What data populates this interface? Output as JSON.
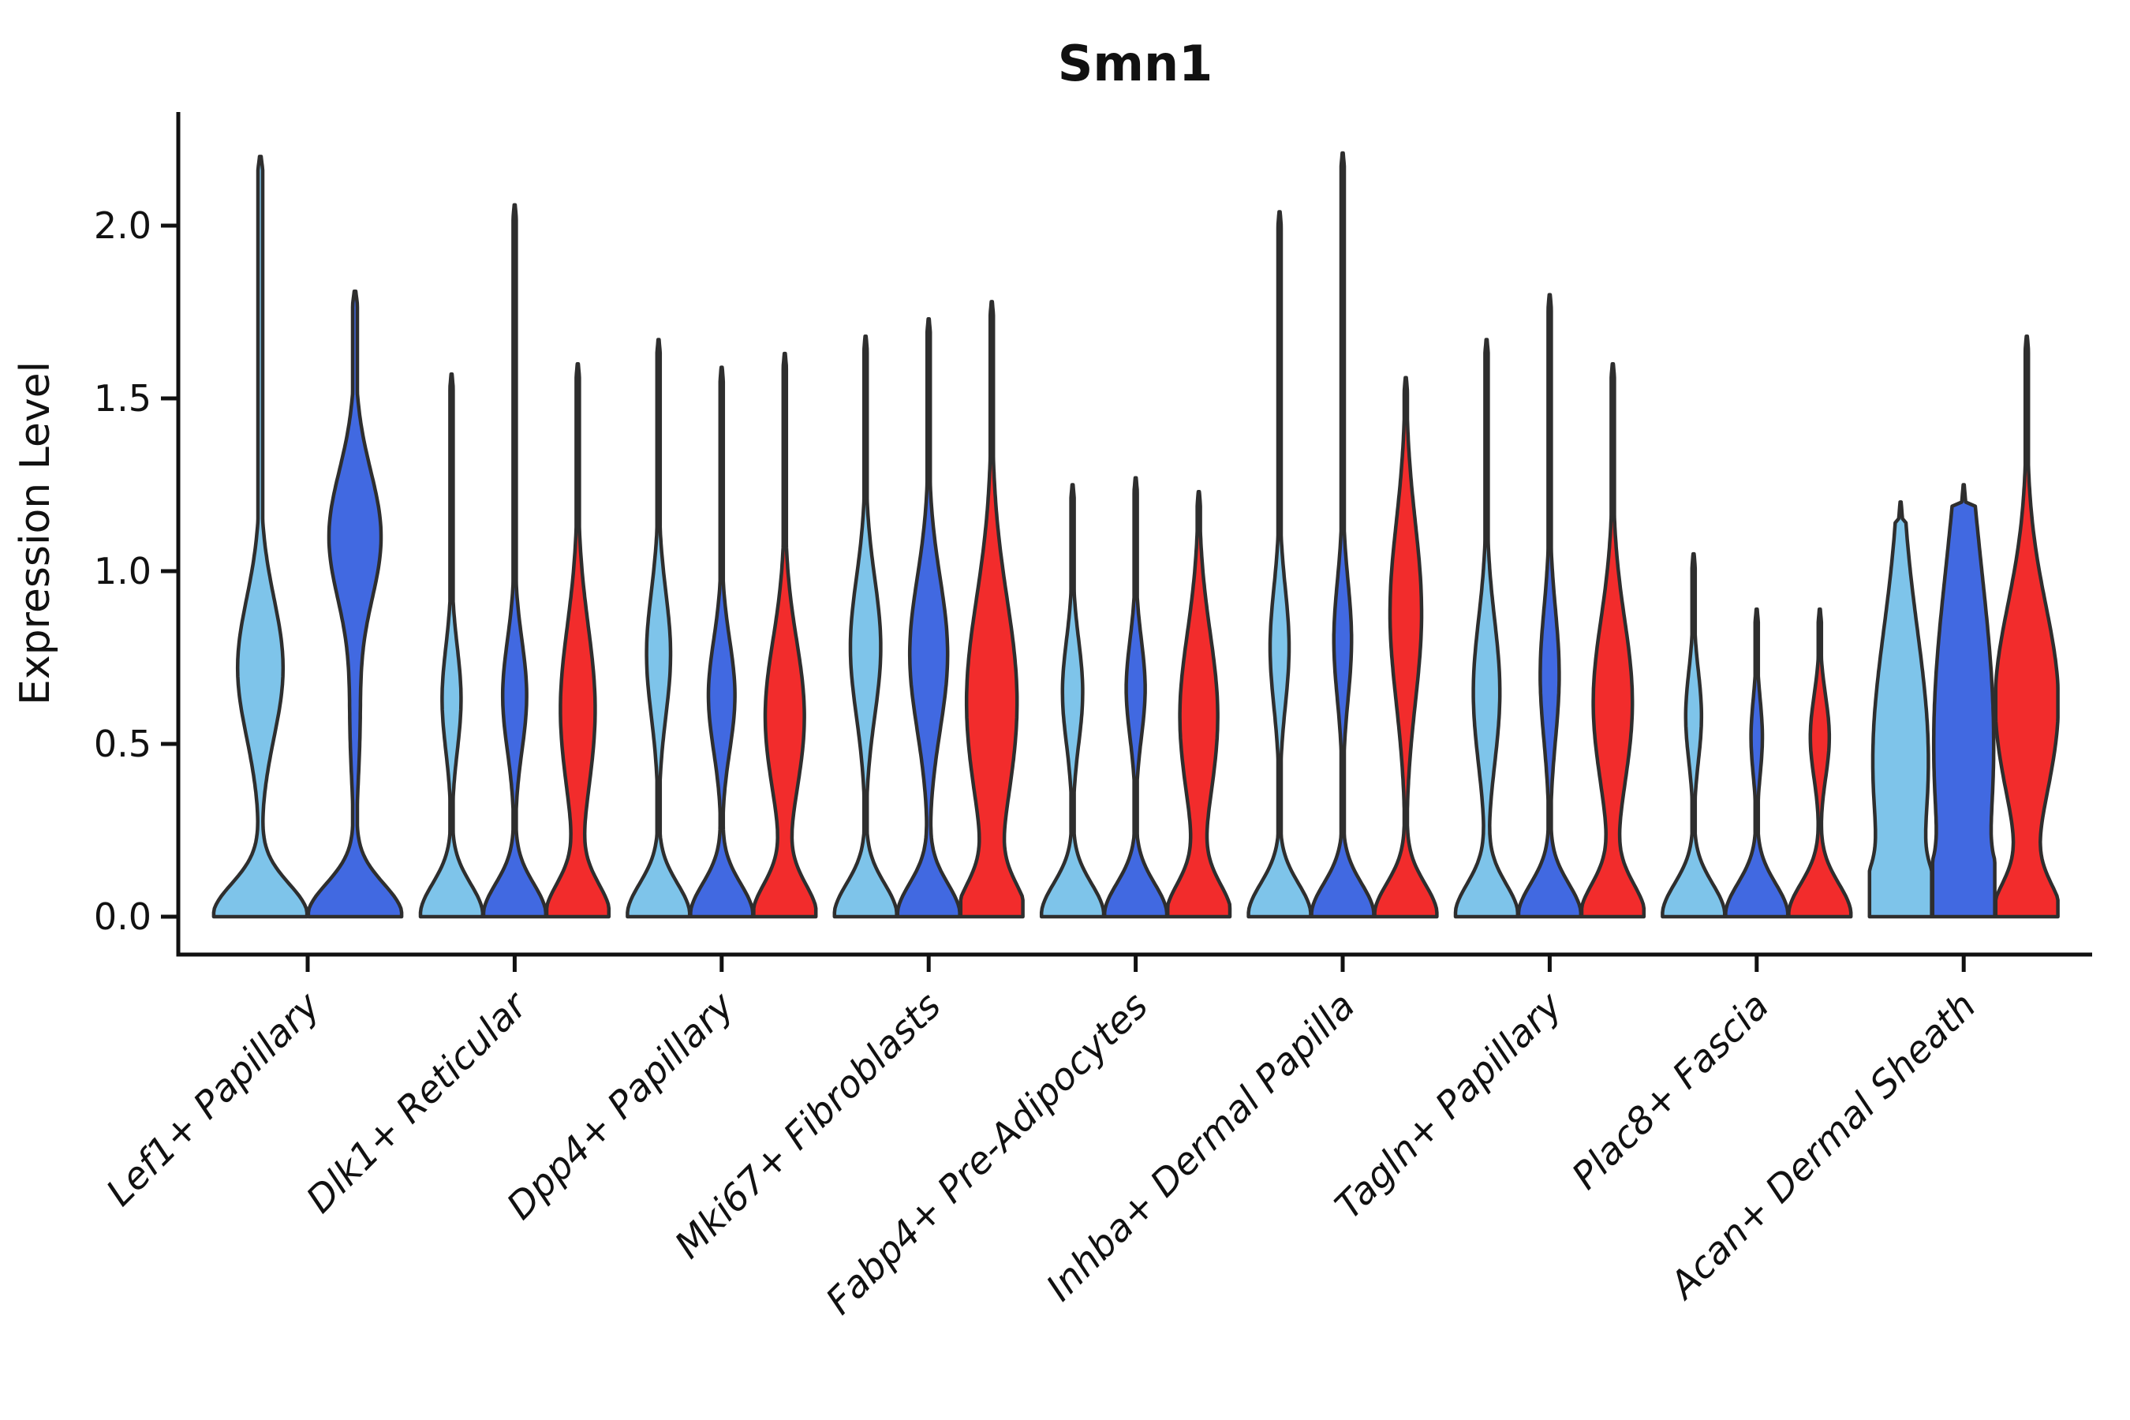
{
  "figure": {
    "title": "Smn1",
    "ylabel": "Expression Level"
  },
  "style": {
    "background": "#FFFFFF",
    "axis_color": "#111111",
    "text_color": "#111111",
    "violin_outline": "#2E2E2E",
    "light_blue": "#7EC4EA",
    "dark_blue": "#4169E1",
    "red": "#F22C2C"
  },
  "chart_data": {
    "type": "violin",
    "title": "Smn1",
    "xlabel": "",
    "ylabel": "Expression Level",
    "ylim": [
      -0.11,
      2.33
    ],
    "grid": false,
    "legend_position": "none",
    "ytick_labels": [
      "0.0",
      "0.5",
      "1.0",
      "1.5",
      "2.0"
    ],
    "ytick_values": [
      0.0,
      0.5,
      1.0,
      1.5,
      2.0
    ],
    "categories": [
      "Lef1+ Papillary",
      "Dlk1+ Reticular",
      "Dpp4+ Papillary",
      "Mki67+ Fibroblasts",
      "Fabp4+ Pre-Adipocytes",
      "Inhba+ Dermal Papilla",
      "Tagln+ Papillary",
      "Plac8+ Fascia",
      "Acan+ Dermal Sheath"
    ],
    "series": [
      {
        "name": "split-1-light-blue",
        "color": "#7EC4EA"
      },
      {
        "name": "split-2-dark-blue",
        "color": "#4169E1"
      },
      {
        "name": "split-3-red",
        "color": "#F22C2C"
      }
    ],
    "violins": [
      {
        "category": "Lef1+ Papillary",
        "items": [
          {
            "series": 0,
            "color": "#7EC4EA",
            "max": 2.2,
            "peak": {
              "c": 0.72,
              "a": 0.48,
              "s": 0.2
            }
          },
          {
            "series": 1,
            "color": "#4169E1",
            "max": 1.81,
            "peak": {
              "c": 1.1,
              "a": 0.55,
              "s": 0.19
            },
            "peak2": {
              "c": 0.55,
              "a": 0.1,
              "s": 0.18
            }
          }
        ]
      },
      {
        "category": "Dlk1+ Reticular",
        "items": [
          {
            "series": 0,
            "color": "#7EC4EA",
            "max": 1.57,
            "peak": {
              "c": 0.63,
              "a": 0.3,
              "s": 0.15
            }
          },
          {
            "series": 1,
            "color": "#4169E1",
            "max": 2.06,
            "peak": {
              "c": 0.64,
              "a": 0.38,
              "s": 0.16
            }
          },
          {
            "series": 2,
            "color": "#F22C2C",
            "max": 1.6,
            "peak": {
              "c": 0.6,
              "a": 0.55,
              "s": 0.24
            }
          }
        ]
      },
      {
        "category": "Dpp4+ Papillary",
        "items": [
          {
            "series": 0,
            "color": "#7EC4EA",
            "max": 1.67,
            "peak": {
              "c": 0.76,
              "a": 0.38,
              "s": 0.18
            }
          },
          {
            "series": 1,
            "color": "#4169E1",
            "max": 1.59,
            "peak": {
              "c": 0.64,
              "a": 0.42,
              "s": 0.16
            }
          },
          {
            "series": 2,
            "color": "#F22C2C",
            "max": 1.63,
            "peak": {
              "c": 0.58,
              "a": 0.62,
              "s": 0.22
            }
          }
        ]
      },
      {
        "category": "Mki67+ Fibroblasts",
        "items": [
          {
            "series": 0,
            "color": "#7EC4EA",
            "max": 1.68,
            "peak": {
              "c": 0.78,
              "a": 0.48,
              "s": 0.2
            }
          },
          {
            "series": 1,
            "color": "#4169E1",
            "max": 1.73,
            "peak": {
              "c": 0.76,
              "a": 0.6,
              "s": 0.22
            }
          },
          {
            "series": 2,
            "color": "#F22C2C",
            "max": 1.78,
            "peak": {
              "c": 0.62,
              "a": 0.8,
              "s": 0.3
            }
          }
        ]
      },
      {
        "category": "Fabp4+ Pre-Adipocytes",
        "items": [
          {
            "series": 0,
            "color": "#7EC4EA",
            "max": 1.25,
            "peak": {
              "c": 0.65,
              "a": 0.32,
              "s": 0.15
            }
          },
          {
            "series": 1,
            "color": "#4169E1",
            "max": 1.27,
            "peak": {
              "c": 0.66,
              "a": 0.3,
              "s": 0.14
            }
          },
          {
            "series": 2,
            "color": "#F22C2C",
            "max": 1.23,
            "peak": {
              "c": 0.58,
              "a": 0.6,
              "s": 0.24
            }
          }
        ]
      },
      {
        "category": "Inhba+ Dermal Papilla",
        "items": [
          {
            "series": 0,
            "color": "#7EC4EA",
            "max": 2.04,
            "peak": {
              "c": 0.78,
              "a": 0.3,
              "s": 0.17
            }
          },
          {
            "series": 1,
            "color": "#4169E1",
            "max": 2.21,
            "peak": {
              "c": 0.8,
              "a": 0.28,
              "s": 0.17
            }
          },
          {
            "series": 2,
            "color": "#F22C2C",
            "max": 1.56,
            "peak": {
              "c": 0.88,
              "a": 0.5,
              "s": 0.26
            }
          }
        ]
      },
      {
        "category": "Tagln+ Papillary",
        "items": [
          {
            "series": 0,
            "color": "#7EC4EA",
            "max": 1.67,
            "peak": {
              "c": 0.65,
              "a": 0.42,
              "s": 0.21
            }
          },
          {
            "series": 1,
            "color": "#4169E1",
            "max": 1.8,
            "peak": {
              "c": 0.7,
              "a": 0.3,
              "s": 0.19
            }
          },
          {
            "series": 2,
            "color": "#F22C2C",
            "max": 1.6,
            "peak": {
              "c": 0.62,
              "a": 0.62,
              "s": 0.24
            }
          }
        ]
      },
      {
        "category": "Plac8+ Fascia",
        "items": [
          {
            "series": 0,
            "color": "#7EC4EA",
            "max": 1.05,
            "peak": {
              "c": 0.58,
              "a": 0.25,
              "s": 0.13
            }
          },
          {
            "series": 1,
            "color": "#4169E1",
            "max": 0.89,
            "peak": {
              "c": 0.52,
              "a": 0.18,
              "s": 0.11
            }
          },
          {
            "series": 2,
            "color": "#F22C2C",
            "max": 0.89,
            "peak": {
              "c": 0.52,
              "a": 0.3,
              "s": 0.12
            }
          }
        ]
      },
      {
        "category": "Acan+ Dermal Sheath",
        "items": [
          {
            "series": 0,
            "color": "#7EC4EA",
            "max": 1.2,
            "peak": {
              "c": 0.45,
              "a": 0.88,
              "s": 0.38
            }
          },
          {
            "series": 1,
            "color": "#4169E1",
            "max": 1.25,
            "peak": {
              "c": 0.5,
              "a": 0.95,
              "s": 0.5
            }
          },
          {
            "series": 2,
            "color": "#F22C2C",
            "max": 1.68,
            "peak": {
              "c": 0.62,
              "a": 1.0,
              "s": 0.28
            }
          }
        ]
      }
    ]
  }
}
